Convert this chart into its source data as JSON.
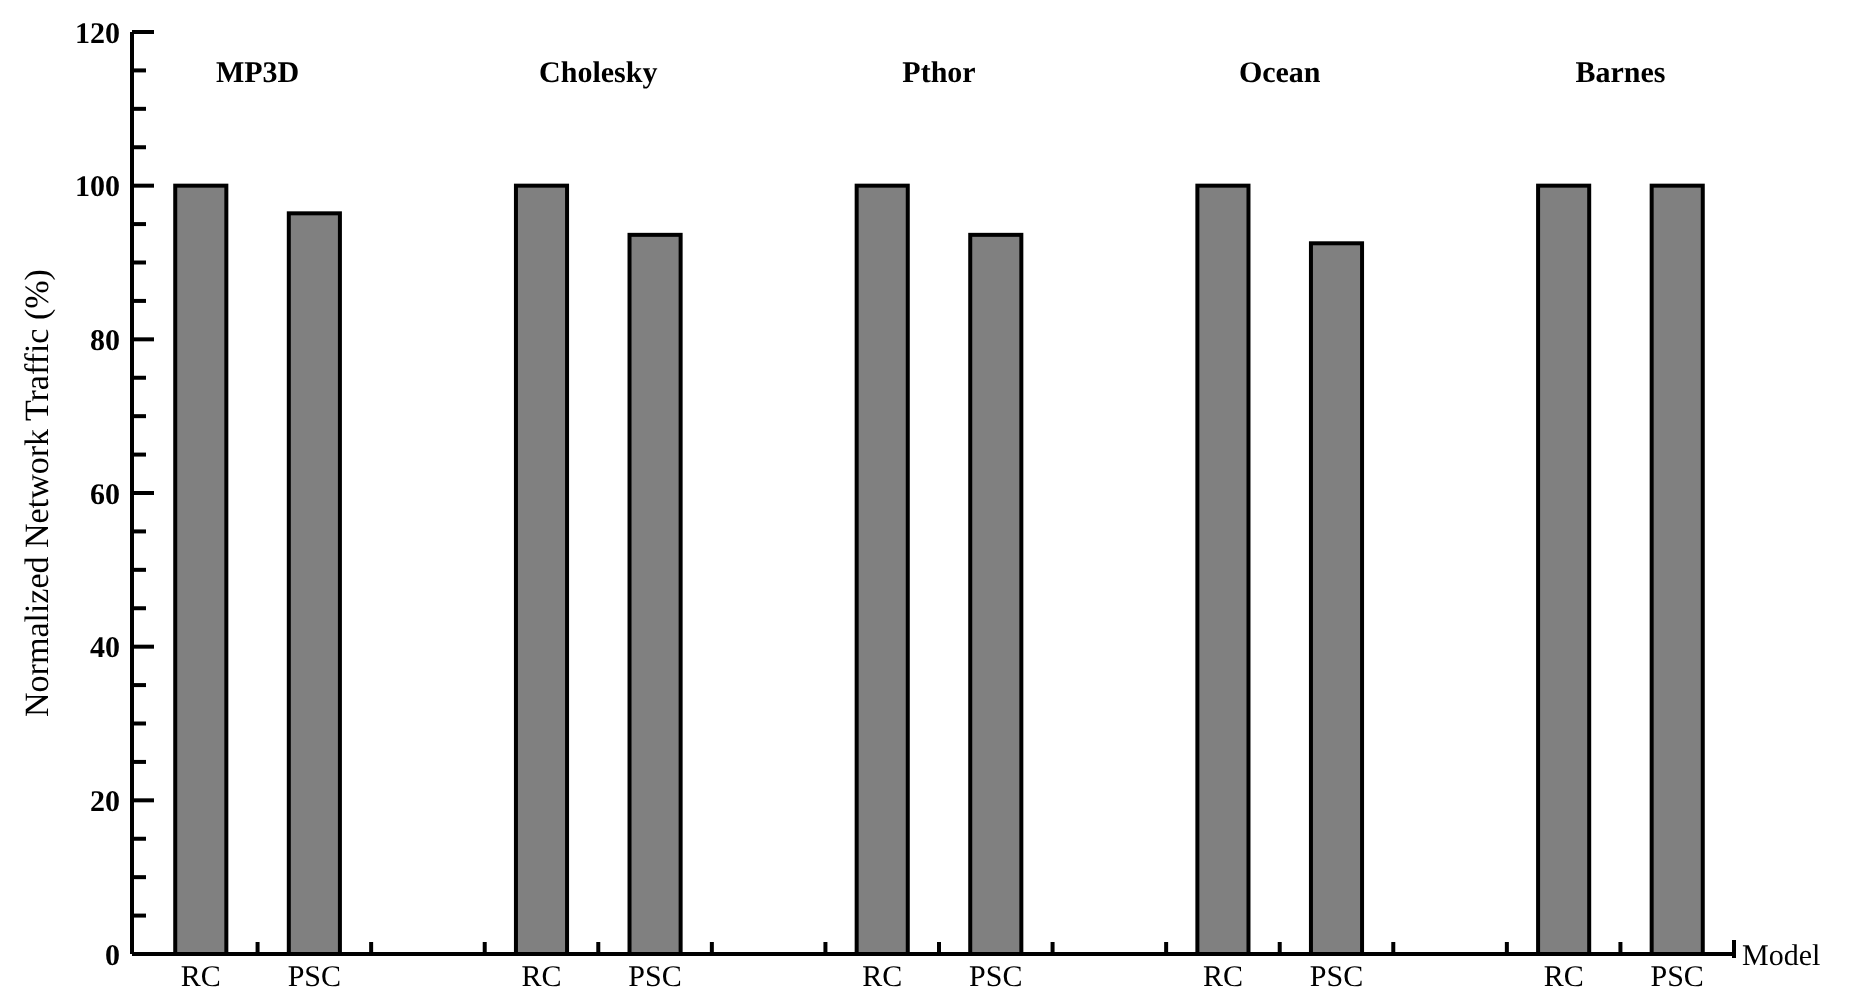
{
  "chart_data": {
    "type": "bar",
    "ylabel": "Normalized Network Traffic (%)",
    "xlabel": "Model",
    "categories": [
      "RC",
      "PSC",
      null,
      "RC",
      "PSC",
      null,
      "RC",
      "PSC",
      null,
      "RC",
      "PSC",
      null,
      "RC",
      "PSC"
    ],
    "values": [
      100,
      96.4,
      null,
      100,
      93.6,
      null,
      100,
      93.6,
      null,
      100,
      92.5,
      null,
      100,
      100
    ],
    "color": "#808080",
    "ylim": [
      0,
      120
    ],
    "yticks": [
      0,
      {
        "value": 5,
        "label": null
      },
      {
        "value": 10,
        "label": null
      },
      {
        "value": 15,
        "label": null
      },
      20,
      {
        "value": 25,
        "label": null
      },
      {
        "value": 30,
        "label": null
      },
      {
        "value": 35,
        "label": null
      },
      40,
      {
        "value": 45,
        "label": null
      },
      {
        "value": 50,
        "label": null
      },
      {
        "value": 55,
        "label": null
      },
      60,
      {
        "value": 65,
        "label": null
      },
      {
        "value": 70,
        "label": null
      },
      {
        "value": 75,
        "label": null
      },
      80,
      {
        "value": 85,
        "label": null
      },
      {
        "value": 90,
        "label": null
      },
      {
        "value": 95,
        "label": null
      },
      100,
      {
        "value": 105,
        "label": null
      },
      {
        "value": 110,
        "label": null
      },
      {
        "value": 115,
        "label": null
      },
      120
    ],
    "annotations": [
      "MP3D",
      "Cholesky",
      "Pthor",
      "Ocean",
      "Barnes"
    ],
    "grid": false
  }
}
